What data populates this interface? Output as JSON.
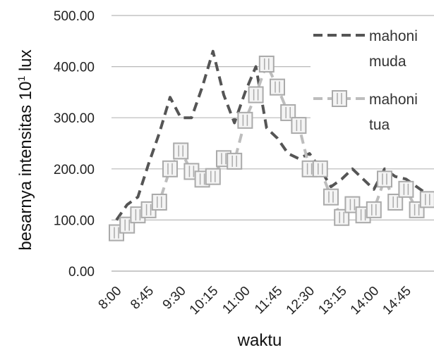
{
  "chart_data": {
    "type": "line",
    "title": "",
    "xlabel": "waktu",
    "ylabel_main": "besarnya intensitas 10",
    "ylabel_sup": "1",
    "ylabel_unit": " lux",
    "ylim": [
      0,
      500
    ],
    "yticks": [
      "0.00",
      "100.00",
      "200.00",
      "300.00",
      "400.00",
      "500.00"
    ],
    "x_tick_labels": [
      "8:00",
      "8:45",
      "9:30",
      "10:15",
      "11:00",
      "11:45",
      "12:30",
      "13:15",
      "14:00",
      "14:45"
    ],
    "x_times": [
      "8:00",
      "8:15",
      "8:30",
      "8:45",
      "9:00",
      "9:15",
      "9:30",
      "9:45",
      "10:00",
      "10:15",
      "10:30",
      "10:45",
      "11:00",
      "11:15",
      "11:30",
      "11:45",
      "12:00",
      "12:15",
      "12:30",
      "12:45",
      "13:00",
      "13:15",
      "13:30",
      "13:45",
      "14:00",
      "14:15",
      "14:30",
      "14:45",
      "15:00",
      "15:15"
    ],
    "grid": true,
    "legend_position": "right",
    "series": [
      {
        "name_lines": [
          "mahoni",
          "muda"
        ],
        "color": "#555555",
        "dash": "dashed",
        "marker": "none",
        "values": [
          100,
          130,
          145,
          210,
          270,
          340,
          300,
          300,
          360,
          430,
          345,
          290,
          350,
          400,
          280,
          260,
          230,
          220,
          230,
          200,
          165,
          180,
          200,
          180,
          160,
          200,
          185,
          180,
          165,
          150
        ]
      },
      {
        "name_lines": [
          "mahoni",
          "tua"
        ],
        "color": "#bdbdbd",
        "dash": "dashed",
        "marker": "square",
        "values": [
          75,
          90,
          110,
          120,
          135,
          200,
          235,
          195,
          180,
          185,
          220,
          215,
          295,
          345,
          405,
          360,
          310,
          285,
          200,
          200,
          145,
          105,
          130,
          110,
          120,
          180,
          135,
          160,
          120,
          140
        ]
      }
    ]
  }
}
